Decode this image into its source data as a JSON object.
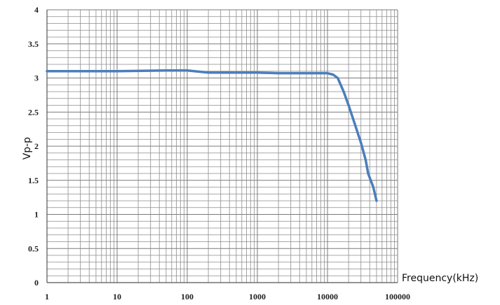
{
  "chart_data": {
    "type": "line",
    "title": "",
    "xlabel": "Frequency(kHz)",
    "ylabel": "Vp-p",
    "x_scale": "log",
    "xlim": [
      1,
      100000
    ],
    "ylim": [
      0,
      4
    ],
    "x_ticks": [
      "1",
      "10",
      "100",
      "1000",
      "10000",
      "100000"
    ],
    "y_ticks": [
      "0",
      "0.5",
      "1",
      "1.5",
      "2",
      "2.5",
      "3",
      "3.5",
      "4"
    ],
    "grid": true,
    "legend": "none",
    "series": [
      {
        "color": "#4a7ebb",
        "x": [
          1,
          10,
          50,
          100,
          200,
          1000,
          2000,
          10000,
          12000,
          14000,
          17000,
          20000,
          25000,
          30000,
          35000,
          38000,
          45000,
          50000
        ],
        "y": [
          3.1,
          3.1,
          3.11,
          3.11,
          3.08,
          3.08,
          3.07,
          3.07,
          3.05,
          3.0,
          2.8,
          2.6,
          2.3,
          2.05,
          1.8,
          1.6,
          1.4,
          1.2
        ]
      }
    ]
  }
}
